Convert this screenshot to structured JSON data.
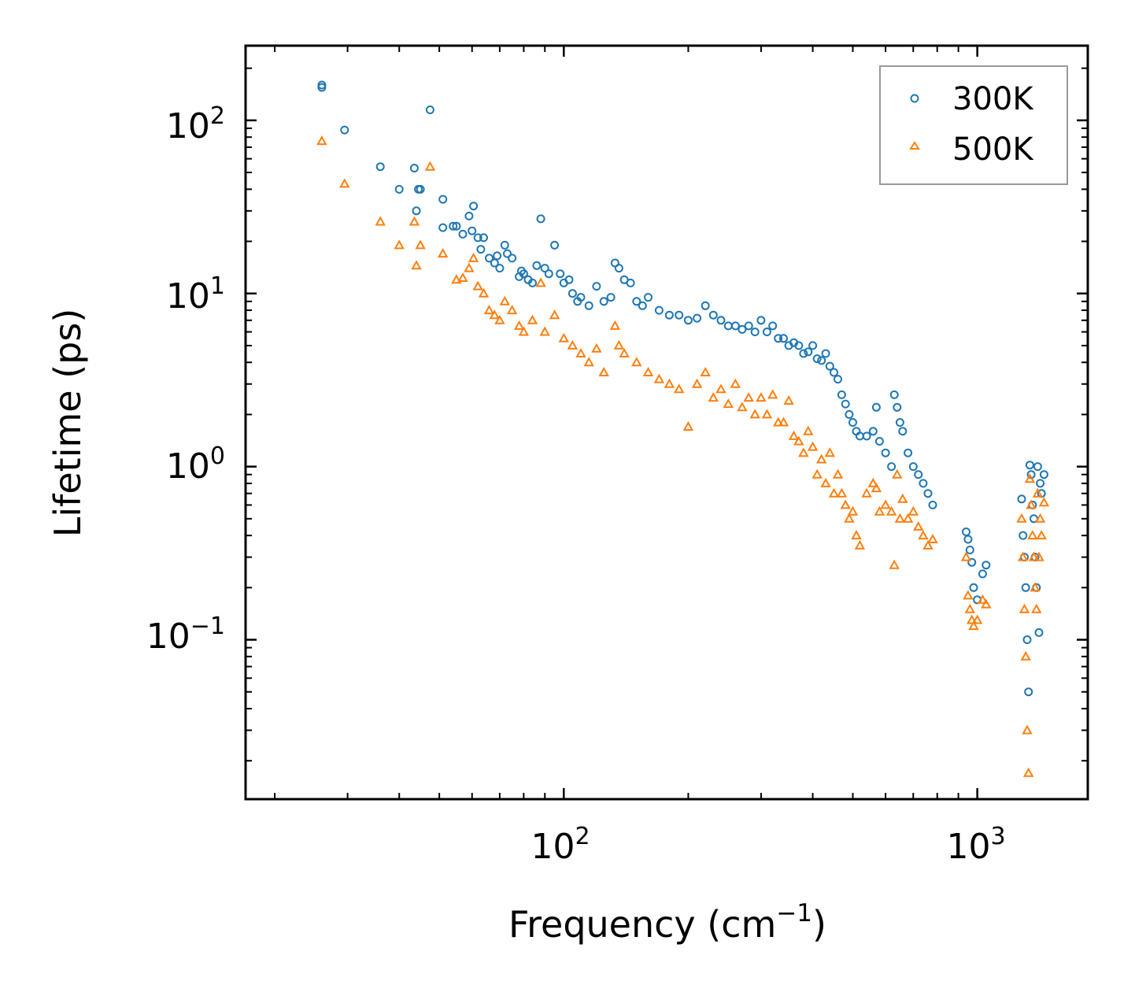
{
  "chart_data": {
    "type": "scatter",
    "title": "",
    "xlabel": "Frequency (cm",
    "xlabel_sup": "−1",
    "xlabel_end": ")",
    "ylabel": "Lifetime (ps)",
    "xscale": "log",
    "yscale": "log",
    "xlim": [
      17,
      1850
    ],
    "ylim": [
      0.012,
      270
    ],
    "x_ticks": [
      {
        "value": 100,
        "base": "10",
        "exp": "2"
      },
      {
        "value": 1000,
        "base": "10",
        "exp": "3"
      }
    ],
    "y_ticks": [
      {
        "value": 0.1,
        "base": "10",
        "exp": "−1"
      },
      {
        "value": 1,
        "base": "10",
        "exp": "0"
      },
      {
        "value": 10,
        "base": "10",
        "exp": "1"
      },
      {
        "value": 100,
        "base": "10",
        "exp": "2"
      }
    ],
    "legend_position": "top-right",
    "series": [
      {
        "name": "300K",
        "color": "#1f77b4",
        "marker": "circle",
        "points": [
          [
            26,
            160
          ],
          [
            26,
            155
          ],
          [
            29.5,
            88
          ],
          [
            36,
            54
          ],
          [
            40,
            40
          ],
          [
            43.5,
            53
          ],
          [
            44,
            30
          ],
          [
            44.5,
            40
          ],
          [
            45,
            40
          ],
          [
            47.5,
            115
          ],
          [
            51,
            35
          ],
          [
            51,
            24
          ],
          [
            54,
            24.5
          ],
          [
            55,
            24.5
          ],
          [
            57,
            22
          ],
          [
            59,
            28
          ],
          [
            60,
            23
          ],
          [
            60.5,
            32
          ],
          [
            62,
            21
          ],
          [
            63,
            18
          ],
          [
            64,
            21
          ],
          [
            66,
            16
          ],
          [
            68,
            15
          ],
          [
            69,
            16.5
          ],
          [
            70,
            14
          ],
          [
            72,
            19
          ],
          [
            73,
            17
          ],
          [
            75,
            16
          ],
          [
            78,
            12.5
          ],
          [
            79,
            13.5
          ],
          [
            80,
            13
          ],
          [
            82,
            12
          ],
          [
            84,
            11.5
          ],
          [
            86,
            14.5
          ],
          [
            88,
            27
          ],
          [
            90,
            14
          ],
          [
            92,
            13
          ],
          [
            95,
            19
          ],
          [
            98,
            13
          ],
          [
            100,
            11.5
          ],
          [
            103,
            12
          ],
          [
            105,
            10
          ],
          [
            108,
            9
          ],
          [
            110,
            9.5
          ],
          [
            115,
            8.5
          ],
          [
            120,
            11
          ],
          [
            125,
            9
          ],
          [
            130,
            9.5
          ],
          [
            133,
            15
          ],
          [
            136,
            14
          ],
          [
            140,
            12
          ],
          [
            145,
            11.5
          ],
          [
            150,
            9
          ],
          [
            155,
            8.5
          ],
          [
            160,
            9.5
          ],
          [
            170,
            8
          ],
          [
            180,
            7.5
          ],
          [
            190,
            7.5
          ],
          [
            200,
            7
          ],
          [
            210,
            7.2
          ],
          [
            220,
            8.5
          ],
          [
            230,
            7.5
          ],
          [
            240,
            7
          ],
          [
            250,
            6.5
          ],
          [
            260,
            6.5
          ],
          [
            270,
            6.2
          ],
          [
            280,
            6.5
          ],
          [
            290,
            6
          ],
          [
            300,
            7
          ],
          [
            310,
            6
          ],
          [
            320,
            6.5
          ],
          [
            330,
            5.5
          ],
          [
            340,
            5.5
          ],
          [
            350,
            5
          ],
          [
            360,
            5.2
          ],
          [
            370,
            5
          ],
          [
            380,
            4.5
          ],
          [
            390,
            4.6
          ],
          [
            400,
            5
          ],
          [
            410,
            4.2
          ],
          [
            420,
            4.1
          ],
          [
            430,
            4.5
          ],
          [
            440,
            3.8
          ],
          [
            450,
            3.5
          ],
          [
            460,
            3.2
          ],
          [
            470,
            2.6
          ],
          [
            480,
            2.3
          ],
          [
            490,
            2
          ],
          [
            500,
            1.8
          ],
          [
            510,
            1.6
          ],
          [
            520,
            1.5
          ],
          [
            540,
            1.5
          ],
          [
            560,
            1.6
          ],
          [
            570,
            2.2
          ],
          [
            580,
            1.4
          ],
          [
            600,
            1.2
          ],
          [
            620,
            1.0
          ],
          [
            630,
            2.6
          ],
          [
            640,
            2.2
          ],
          [
            650,
            1.8
          ],
          [
            660,
            1.6
          ],
          [
            680,
            1.2
          ],
          [
            700,
            1.0
          ],
          [
            720,
            0.9
          ],
          [
            740,
            0.8
          ],
          [
            760,
            0.7
          ],
          [
            780,
            0.6
          ],
          [
            940,
            0.42
          ],
          [
            950,
            0.38
          ],
          [
            960,
            0.33
          ],
          [
            970,
            0.28
          ],
          [
            980,
            0.2
          ],
          [
            1000,
            0.17
          ],
          [
            1030,
            0.24
          ],
          [
            1050,
            0.27
          ],
          [
            1280,
            0.65
          ],
          [
            1290,
            0.4
          ],
          [
            1300,
            0.3
          ],
          [
            1310,
            0.2
          ],
          [
            1320,
            0.1
          ],
          [
            1330,
            0.05
          ],
          [
            1340,
            1.02
          ],
          [
            1350,
            0.9
          ],
          [
            1360,
            0.6
          ],
          [
            1370,
            0.5
          ],
          [
            1380,
            0.3
          ],
          [
            1390,
            0.2
          ],
          [
            1400,
            1.0
          ],
          [
            1410,
            0.11
          ],
          [
            1420,
            0.8
          ],
          [
            1430,
            0.7
          ],
          [
            1450,
            0.9
          ]
        ]
      },
      {
        "name": "500K",
        "color": "#ff7f0e",
        "marker": "triangle",
        "points": [
          [
            26,
            76
          ],
          [
            29.5,
            43
          ],
          [
            36,
            26
          ],
          [
            40,
            19
          ],
          [
            43.5,
            26
          ],
          [
            44,
            14.5
          ],
          [
            45,
            19
          ],
          [
            47.5,
            54
          ],
          [
            51,
            17
          ],
          [
            55,
            12
          ],
          [
            57,
            12.3
          ],
          [
            59,
            14
          ],
          [
            60.5,
            16
          ],
          [
            62,
            11
          ],
          [
            64,
            10
          ],
          [
            66,
            8
          ],
          [
            68,
            7.5
          ],
          [
            70,
            7
          ],
          [
            72,
            9
          ],
          [
            75,
            8
          ],
          [
            78,
            6.5
          ],
          [
            80,
            6
          ],
          [
            84,
            7
          ],
          [
            88,
            11.5
          ],
          [
            90,
            6
          ],
          [
            95,
            7.5
          ],
          [
            100,
            5.5
          ],
          [
            105,
            5
          ],
          [
            110,
            4.5
          ],
          [
            115,
            4
          ],
          [
            120,
            4.8
          ],
          [
            125,
            3.5
          ],
          [
            133,
            6.5
          ],
          [
            136,
            5
          ],
          [
            140,
            4.5
          ],
          [
            150,
            4
          ],
          [
            160,
            3.5
          ],
          [
            170,
            3.2
          ],
          [
            180,
            3
          ],
          [
            190,
            2.8
          ],
          [
            200,
            1.7
          ],
          [
            210,
            3
          ],
          [
            220,
            3.5
          ],
          [
            230,
            2.5
          ],
          [
            240,
            2.8
          ],
          [
            250,
            2.3
          ],
          [
            260,
            3
          ],
          [
            270,
            2.2
          ],
          [
            280,
            2.5
          ],
          [
            290,
            2
          ],
          [
            300,
            2.5
          ],
          [
            310,
            2
          ],
          [
            320,
            2.6
          ],
          [
            330,
            1.8
          ],
          [
            340,
            1.8
          ],
          [
            350,
            2.4
          ],
          [
            360,
            1.5
          ],
          [
            370,
            1.4
          ],
          [
            380,
            1.2
          ],
          [
            390,
            1.6
          ],
          [
            400,
            1.3
          ],
          [
            410,
            0.9
          ],
          [
            420,
            1.1
          ],
          [
            430,
            0.8
          ],
          [
            440,
            1.2
          ],
          [
            450,
            0.7
          ],
          [
            460,
            0.9
          ],
          [
            470,
            0.7
          ],
          [
            480,
            0.6
          ],
          [
            490,
            0.5
          ],
          [
            500,
            0.55
          ],
          [
            510,
            0.4
          ],
          [
            520,
            0.35
          ],
          [
            540,
            0.7
          ],
          [
            560,
            0.8
          ],
          [
            570,
            0.75
          ],
          [
            580,
            0.55
          ],
          [
            600,
            0.6
          ],
          [
            620,
            0.55
          ],
          [
            630,
            0.27
          ],
          [
            640,
            0.9
          ],
          [
            650,
            0.5
          ],
          [
            660,
            0.65
          ],
          [
            680,
            0.5
          ],
          [
            700,
            0.55
          ],
          [
            720,
            0.45
          ],
          [
            740,
            0.4
          ],
          [
            760,
            0.35
          ],
          [
            780,
            0.38
          ],
          [
            940,
            0.3
          ],
          [
            950,
            0.18
          ],
          [
            960,
            0.15
          ],
          [
            970,
            0.13
          ],
          [
            980,
            0.12
          ],
          [
            1000,
            0.13
          ],
          [
            1030,
            0.17
          ],
          [
            1050,
            0.16
          ],
          [
            1280,
            0.5
          ],
          [
            1290,
            0.3
          ],
          [
            1300,
            0.15
          ],
          [
            1310,
            0.08
          ],
          [
            1320,
            0.03
          ],
          [
            1330,
            0.017
          ],
          [
            1340,
            0.85
          ],
          [
            1350,
            0.6
          ],
          [
            1360,
            0.4
          ],
          [
            1370,
            0.3
          ],
          [
            1380,
            0.2
          ],
          [
            1390,
            0.15
          ],
          [
            1400,
            0.7
          ],
          [
            1410,
            0.3
          ],
          [
            1420,
            0.5
          ],
          [
            1430,
            0.4
          ],
          [
            1450,
            0.62
          ]
        ]
      }
    ]
  }
}
